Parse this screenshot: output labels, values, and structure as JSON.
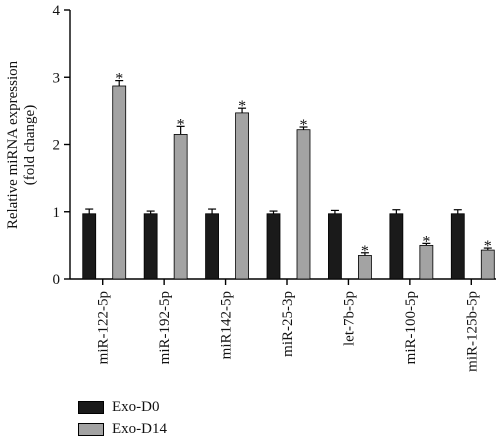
{
  "chart_data": {
    "type": "bar",
    "title": "",
    "ylabel_line1": "Relative miRNA expression",
    "ylabel_line2": "(fold change)",
    "xlabel": "",
    "ylim": [
      0,
      4
    ],
    "yticks": [
      "0",
      "1",
      "2",
      "3",
      "4"
    ],
    "categories": [
      "miR-122-5p",
      "miR-192-5p",
      "miR142-5p",
      "miR-25-3p",
      "let-7b-5p",
      "miR-100-5p",
      "miR-125b-5p"
    ],
    "series": [
      {
        "name": "Exo-D0",
        "color": "#1a1a1a",
        "values": [
          0.97,
          0.97,
          0.97,
          0.97,
          0.97,
          0.97,
          0.97
        ],
        "errors": [
          0.07,
          0.04,
          0.07,
          0.04,
          0.05,
          0.06,
          0.06
        ]
      },
      {
        "name": "Exo-D14",
        "color": "#a3a3a3",
        "values": [
          2.87,
          2.15,
          2.47,
          2.22,
          0.35,
          0.5,
          0.43
        ],
        "errors": [
          0.08,
          0.12,
          0.07,
          0.04,
          0.04,
          0.03,
          0.03
        ]
      }
    ],
    "significance_marker": "*",
    "significant": [
      true,
      true,
      true,
      true,
      true,
      true,
      true
    ],
    "legend_position": "bottom-left"
  }
}
